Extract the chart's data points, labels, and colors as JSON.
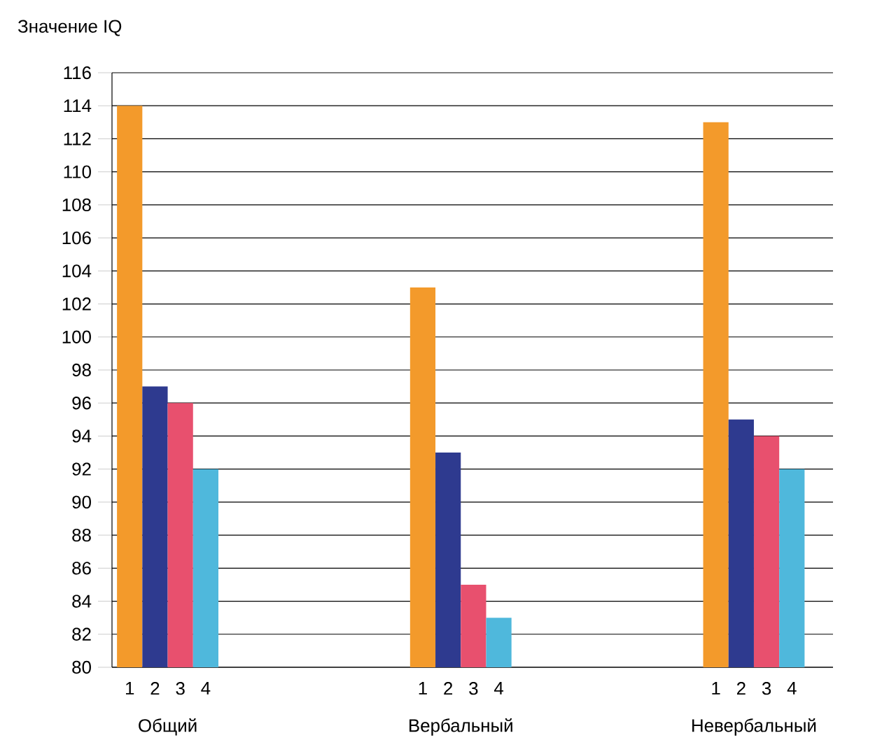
{
  "chart_data": {
    "type": "bar",
    "ylabel": "Значение IQ",
    "categories": [
      "Общий",
      "Вербальный",
      "Невербальный"
    ],
    "series": [
      {
        "name": "1",
        "color": "#f39a2b",
        "values": [
          114,
          103,
          113
        ]
      },
      {
        "name": "2",
        "color": "#2e3a8f",
        "values": [
          97,
          93,
          95
        ]
      },
      {
        "name": "3",
        "color": "#e8506e",
        "values": [
          96,
          85,
          94
        ]
      },
      {
        "name": "4",
        "color": "#4fb8dc",
        "values": [
          92,
          83,
          92
        ]
      }
    ],
    "ylim": [
      80,
      116
    ],
    "yticks": [
      80,
      82,
      84,
      86,
      88,
      90,
      92,
      94,
      96,
      98,
      100,
      102,
      104,
      106,
      108,
      110,
      112,
      114,
      116
    ],
    "grid": "y",
    "legend": false
  }
}
